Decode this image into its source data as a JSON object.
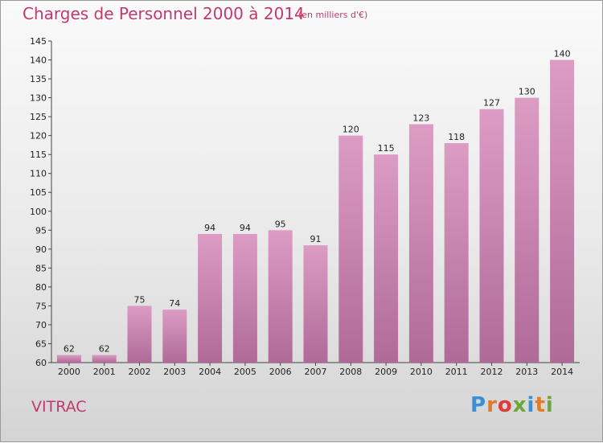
{
  "chart_data": {
    "type": "bar",
    "title": "Charges de Personnel 2000 à 2014",
    "subtitle": "(en milliers d'€)",
    "categories": [
      "2000",
      "2001",
      "2002",
      "2003",
      "2004",
      "2005",
      "2006",
      "2007",
      "2008",
      "2009",
      "2010",
      "2011",
      "2012",
      "2013",
      "2014"
    ],
    "values": [
      62,
      62,
      75,
      74,
      94,
      94,
      95,
      91,
      120,
      115,
      123,
      118,
      127,
      130,
      140
    ],
    "ylim": [
      60,
      145
    ],
    "yticks": [
      60,
      65,
      70,
      75,
      80,
      85,
      90,
      95,
      100,
      105,
      110,
      115,
      120,
      125,
      130,
      135,
      140,
      145
    ],
    "grid": false,
    "bar_color": "#dc9cc4",
    "bar_color_dark": "#b06a98"
  },
  "commune": "VITRAC",
  "logo": {
    "text": "Proxiti",
    "colors": [
      "#3a8fd6",
      "#e07b2a",
      "#e03a3a",
      "#6aa83a",
      "#3a8fd6",
      "#e07b2a",
      "#6aa83a"
    ]
  }
}
